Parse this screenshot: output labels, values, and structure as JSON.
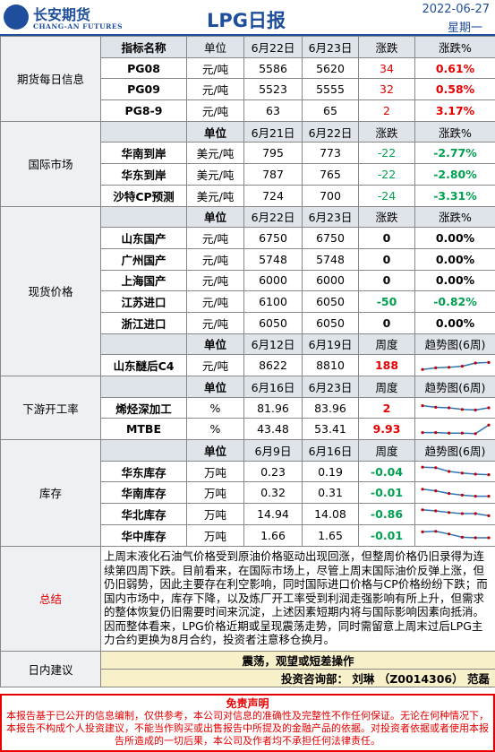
{
  "header": {
    "logo_cn": "长安期货",
    "logo_en": "CHANG-AN FUTURES",
    "title": "LPG日报",
    "date": "2022-06-27",
    "weekday": "星期一"
  },
  "futures": {
    "section": "期货每日信息",
    "head": [
      "指标名称",
      "单位",
      "6月22日",
      "6月23日",
      "涨跌",
      "涨跌%"
    ],
    "rows": [
      {
        "name": "PG08",
        "unit": "元/吨",
        "v1": "5586",
        "v2": "5620",
        "chg": "34",
        "pct": "0.61%"
      },
      {
        "name": "PG09",
        "unit": "元/吨",
        "v1": "5523",
        "v2": "5555",
        "chg": "32",
        "pct": "0.58%"
      },
      {
        "name": "PG8-9",
        "unit": "元/吨",
        "v1": "63",
        "v2": "65",
        "chg": "2",
        "pct": "3.17%"
      }
    ]
  },
  "intl": {
    "section": "国际市场",
    "head": [
      "单位",
      "6月21日",
      "6月22日",
      "涨跌",
      "涨跌%"
    ],
    "rows": [
      {
        "name": "华南到岸",
        "unit": "美元/吨",
        "v1": "795",
        "v2": "773",
        "chg": "-22",
        "pct": "-2.77%"
      },
      {
        "name": "华东到岸",
        "unit": "美元/吨",
        "v1": "787",
        "v2": "765",
        "chg": "-22",
        "pct": "-2.80%"
      },
      {
        "name": "沙特CP预测",
        "unit": "美元/吨",
        "v1": "724",
        "v2": "700",
        "chg": "-24",
        "pct": "-3.31%"
      }
    ]
  },
  "spot": {
    "section": "现货价格",
    "head": [
      "单位",
      "6月22日",
      "6月23日",
      "涨跌",
      "涨跌%"
    ],
    "rows": [
      {
        "name": "山东国产",
        "unit": "元/吨",
        "v1": "6750",
        "v2": "6750",
        "chg": "0",
        "pct": "0.00%"
      },
      {
        "name": "广州国产",
        "unit": "元/吨",
        "v1": "5748",
        "v2": "5748",
        "chg": "0",
        "pct": "0.00%"
      },
      {
        "name": "上海国产",
        "unit": "元/吨",
        "v1": "6000",
        "v2": "6000",
        "chg": "0",
        "pct": "0.00%"
      },
      {
        "name": "江苏进口",
        "unit": "元/吨",
        "v1": "6100",
        "v2": "6050",
        "chg": "-50",
        "pct": "-0.82%"
      },
      {
        "name": "浙江进口",
        "unit": "元/吨",
        "v1": "6050",
        "v2": "6050",
        "chg": "0",
        "pct": "0.00%"
      }
    ],
    "head2": [
      "单位",
      "6月12日",
      "6月19日",
      "周度",
      "趋势图(6周)"
    ],
    "row2": {
      "name": "山东醚后C4",
      "unit": "元/吨",
      "v1": "8622",
      "v2": "8810",
      "chg": "188",
      "trend": [
        0.15,
        0.3,
        0.35,
        0.45,
        0.75,
        0.8
      ]
    }
  },
  "downstream": {
    "section": "下游开工率",
    "head": [
      "单位",
      "6月16日",
      "6月23日",
      "周度",
      "趋势图(6周)"
    ],
    "rows": [
      {
        "name": "烯烃深加工",
        "unit": "%",
        "v1": "81.96",
        "v2": "83.96",
        "chg": "2",
        "trend": [
          0.7,
          0.55,
          0.5,
          0.35,
          0.3,
          0.5
        ]
      },
      {
        "name": "MTBE",
        "unit": "%",
        "v1": "43.48",
        "v2": "53.41",
        "chg": "9.93",
        "trend": [
          0.2,
          0.2,
          0.15,
          0.15,
          0.1,
          0.9
        ]
      }
    ]
  },
  "inventory": {
    "section": "库存",
    "head": [
      "单位",
      "6月9日",
      "6月16日",
      "周度",
      "趋势图(6周)"
    ],
    "rows": [
      {
        "name": "华东库存",
        "unit": "万吨",
        "v1": "0.23",
        "v2": "0.19",
        "chg": "-0.04",
        "trend": [
          0.9,
          0.85,
          0.5,
          0.35,
          0.25,
          0.2
        ]
      },
      {
        "name": "华南库存",
        "unit": "万吨",
        "v1": "0.32",
        "v2": "0.31",
        "chg": "-0.01",
        "trend": [
          0.85,
          0.7,
          0.45,
          0.3,
          0.2,
          0.2
        ]
      },
      {
        "name": "华北库存",
        "unit": "万吨",
        "v1": "14.94",
        "v2": "14.08",
        "chg": "-0.86",
        "trend": [
          0.85,
          0.75,
          0.6,
          0.5,
          0.5,
          0.3
        ]
      },
      {
        "name": "华中库存",
        "unit": "万吨",
        "v1": "1.66",
        "v2": "1.65",
        "chg": "-0.01",
        "trend": [
          0.8,
          0.85,
          0.6,
          0.3,
          0.25,
          0.25
        ]
      }
    ]
  },
  "summary": {
    "section": "总结",
    "text": "上周末液化石油气价格受到原油价格驱动出现回涨，但整周价格仍旧录得为连续第四周下跌。目前看来，在国际市场上，尽管上周末国际油价反弹上涨，但仍旧弱势，因此主要存在利空影响，同时国际进口价格与CP价格纷纷下跌；而国内市场中，库存下降，以及炼厂开工率受到利润走强影响有所上升，但需求的整体恢复仍旧需要时间来沉淀，上述因素短期内将与国际影响因素向抵消。因而整体看来，LPG价格近期或呈现震荡走势，同时需留意上周末过后LPG主力合约更换为8月合约，投资者注意移仓换月。"
  },
  "advice": {
    "section": "日内建议",
    "line1": "震荡，观望或短差操作",
    "line2": "投资咨询部： 刘琳 （Z0014306） 范磊"
  },
  "disclaimer": {
    "title": "免责声明",
    "text": "本报告基于已公开的信息编制，仅供参考，本公司对信息的准确性及完整性不作任何保证。无论在何种情况下，本报告不构成个人投资建议，不能当作购买或出售报告中所提及的金融产品的依据。对投资者依据或者使用本报告所造成的一切后果，本公司及作者均不承担任何法律责任。"
  },
  "colors": {
    "brand": "#1f4e9c",
    "up": "#e60000",
    "down": "#00a050",
    "trend_line": "#2e75b6",
    "trend_marker": "#c00000"
  }
}
